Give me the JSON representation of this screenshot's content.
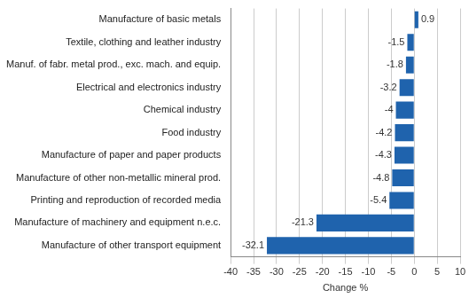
{
  "chart_data": {
    "type": "bar",
    "orientation": "horizontal",
    "x_label": "Change %",
    "categories": [
      "Manufacture of basic metals",
      "Textile, clothing and leather industry",
      "Manuf. of fabr. metal prod., exc. mach. and equip.",
      "Electrical and electronics industry",
      "Chemical industry",
      "Food industry",
      "Manufacture of paper and paper products",
      "Manufacture of other non-metallic mineral prod.",
      "Printing and reproduction of recorded media",
      "Manufacture of machinery and equipment n.e.c.",
      "Manufacture of other transport equipment"
    ],
    "values": [
      0.9,
      -1.5,
      -1.8,
      -3.2,
      -4,
      -4.2,
      -4.3,
      -4.8,
      -5.4,
      -21.3,
      -32.1
    ],
    "color": "#1f63ad",
    "xlim": [
      -40,
      10
    ],
    "xticks": [
      -40,
      -35,
      -30,
      -25,
      -20,
      -15,
      -10,
      -5,
      0,
      5,
      10
    ],
    "grid": true,
    "data_labels": true
  }
}
